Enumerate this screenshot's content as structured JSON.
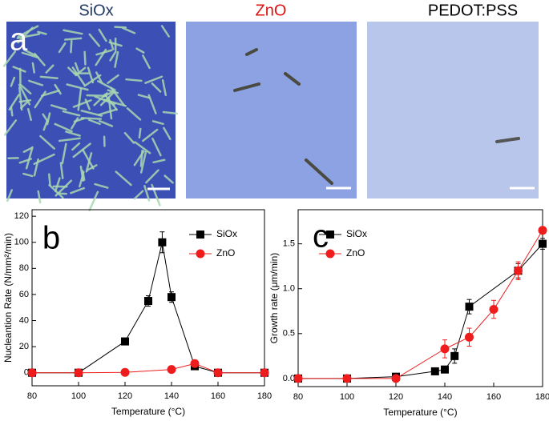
{
  "panel_a": {
    "label": "a",
    "images": [
      {
        "title": "SiOx"
      },
      {
        "title": "ZnO"
      },
      {
        "title": "PEDOT:PSS"
      }
    ]
  },
  "chart_data": [
    {
      "type": "line",
      "label": "b",
      "xlabel": "Temperature (°C)",
      "ylabel": "Nucleantion Rate (N/mm²/min)",
      "xlim": [
        80,
        180
      ],
      "xticks": [
        80,
        100,
        120,
        140,
        160,
        180
      ],
      "ylim": [
        -10,
        125
      ],
      "yticks": [
        0,
        20,
        40,
        60,
        80,
        100,
        120
      ],
      "legend": "upper right",
      "series": [
        {
          "name": "SiOx",
          "color": "#000000",
          "marker": "square",
          "x": [
            80,
            100,
            120,
            130,
            136,
            140,
            150,
            160,
            180
          ],
          "values": [
            0,
            0,
            24,
            55,
            100,
            58,
            5,
            0,
            0
          ],
          "errors": [
            null,
            null,
            null,
            4,
            8,
            4,
            null,
            null,
            null
          ]
        },
        {
          "name": "ZnO",
          "color": "#ee1c1c",
          "marker": "circle",
          "x": [
            80,
            100,
            120,
            140,
            150,
            160,
            180
          ],
          "values": [
            0,
            0,
            0.3,
            2.5,
            7,
            0,
            0
          ],
          "errors": [
            null,
            null,
            null,
            null,
            null,
            null,
            null
          ]
        }
      ]
    },
    {
      "type": "line",
      "label": "c",
      "xlabel": "Temperature (°C)",
      "ylabel": "Growth rate (μm/min)",
      "xlim": [
        80,
        180
      ],
      "xticks": [
        80,
        100,
        120,
        140,
        160,
        180
      ],
      "ylim": [
        -0.09,
        1.88
      ],
      "yticks": [
        {
          "value": 0,
          "label": "0.0"
        },
        {
          "value": 0.5,
          "label": "0.5"
        },
        {
          "value": 1,
          "label": "1.0"
        },
        {
          "value": 1.5,
          "label": "1.5"
        }
      ],
      "legend": "upper left",
      "series": [
        {
          "name": "SiOx",
          "color": "#000000",
          "marker": "square",
          "x": [
            80,
            100,
            120,
            136,
            140,
            144,
            150,
            170,
            180
          ],
          "values": [
            0,
            0,
            0.02,
            0.08,
            0.1,
            0.25,
            0.8,
            1.2,
            1.5
          ],
          "errors": [
            null,
            null,
            null,
            null,
            null,
            0.08,
            0.08,
            0.08,
            0.06
          ]
        },
        {
          "name": "ZnO",
          "color": "#ee1c1c",
          "marker": "circle",
          "x": [
            80,
            100,
            120,
            140,
            150,
            160,
            170,
            180
          ],
          "values": [
            0,
            0,
            0,
            0.33,
            0.46,
            0.77,
            1.2,
            1.65
          ],
          "errors": [
            null,
            null,
            null,
            0.1,
            0.1,
            0.1,
            0.1,
            null
          ]
        }
      ]
    }
  ]
}
